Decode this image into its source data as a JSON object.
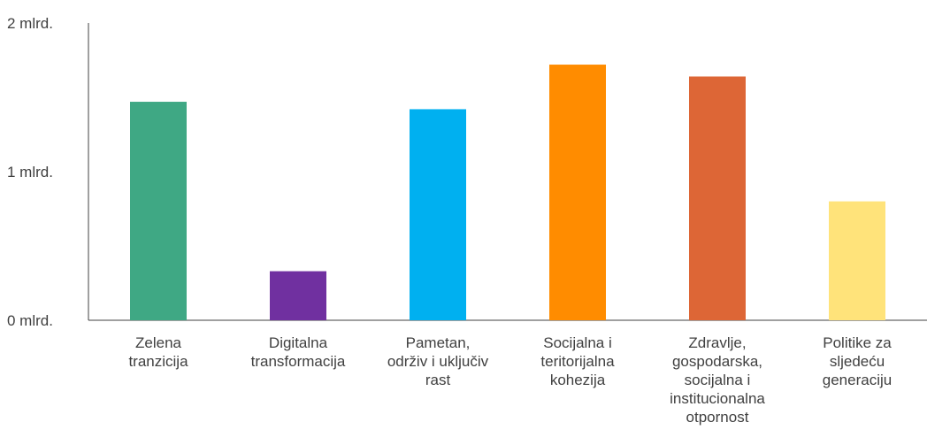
{
  "chart_data": {
    "type": "bar",
    "categories": [
      [
        "Zelena",
        "tranzicija"
      ],
      [
        "Digitalna",
        "transformacija"
      ],
      [
        "Pametan,",
        "održiv i uključiv",
        "rast"
      ],
      [
        "Socijalna i",
        "teritorijalna",
        "kohezija"
      ],
      [
        "Zdravlje,",
        "gospodarska,",
        "socijalna i",
        "institucionalna",
        "otpornost"
      ],
      [
        "Politike za",
        "sljedeću",
        "generaciju"
      ]
    ],
    "values": [
      1.47,
      0.33,
      1.42,
      1.72,
      1.64,
      0.8
    ],
    "colors": [
      "#3fa884",
      "#7030a0",
      "#00b0f0",
      "#ff8c00",
      "#dd6636",
      "#ffe37a"
    ],
    "y_ticks": [
      {
        "value": 0,
        "label": "0 mlrd."
      },
      {
        "value": 1,
        "label": "1 mlrd."
      },
      {
        "value": 2,
        "label": "2 mlrd."
      }
    ],
    "ylim": [
      0,
      2
    ],
    "title": "",
    "xlabel": "",
    "ylabel": "",
    "grid": false,
    "legend": "none"
  }
}
